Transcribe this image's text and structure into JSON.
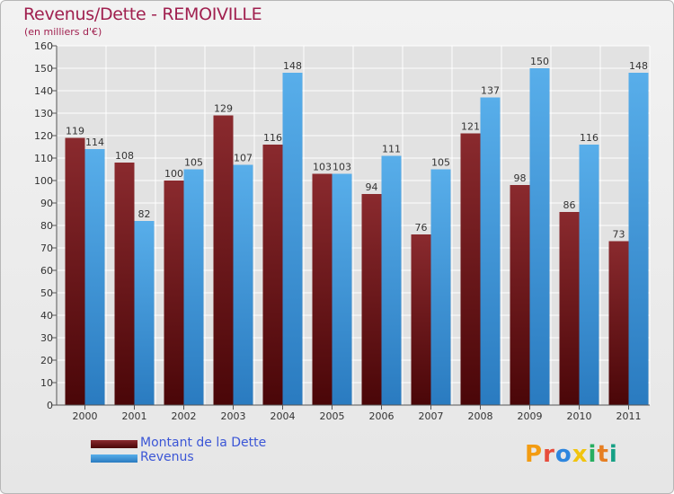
{
  "title": "Revenus/Dette - REMOIVILLE",
  "subtitle": "(en milliers d'€)",
  "brand": "Proxiti",
  "colors": {
    "title": "#a0204f",
    "dette": "#7a1f24",
    "revenus": "#4ea4e4",
    "legend_text": "#3b56d6",
    "grid": "#ffffff"
  },
  "chart_data": {
    "type": "bar",
    "title": "Revenus/Dette - REMOIVILLE",
    "subtitle": "(en milliers d'€)",
    "categories": [
      "2000",
      "2001",
      "2002",
      "2003",
      "2004",
      "2005",
      "2006",
      "2007",
      "2008",
      "2009",
      "2010",
      "2011"
    ],
    "series": [
      {
        "name": "Montant de la Dette",
        "values": [
          119,
          108,
          100,
          129,
          116,
          103,
          94,
          76,
          121,
          98,
          86,
          73
        ]
      },
      {
        "name": "Revenus",
        "values": [
          114,
          82,
          105,
          107,
          148,
          103,
          111,
          105,
          137,
          150,
          116,
          148
        ]
      }
    ],
    "ylim": [
      0,
      160
    ],
    "ytick_step": 10,
    "grid": true,
    "legend": "bottom-left"
  }
}
